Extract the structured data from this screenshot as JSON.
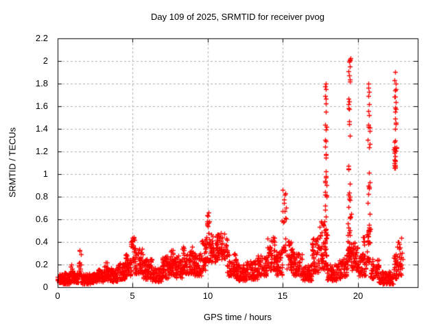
{
  "chart_data": {
    "type": "scatter",
    "title": "Day 109 of 2025, SRMTID for receiver pvog",
    "xlabel": "GPS time / hours",
    "ylabel": "SRMTID / TECUs",
    "xlim": [
      0,
      24
    ],
    "ylim": [
      0,
      2.2
    ],
    "grid": true,
    "legend": false,
    "xticks": [
      {
        "v": 0,
        "label": "0"
      },
      {
        "v": 5,
        "label": "5"
      },
      {
        "v": 10,
        "label": "10"
      },
      {
        "v": 15,
        "label": "15"
      },
      {
        "v": 20,
        "label": "20"
      }
    ],
    "yticks": [
      {
        "v": 0.0,
        "label": "0"
      },
      {
        "v": 0.2,
        "label": "0.2"
      },
      {
        "v": 0.4,
        "label": "0.4"
      },
      {
        "v": 0.6,
        "label": "0.6"
      },
      {
        "v": 0.8,
        "label": "0.8"
      },
      {
        "v": 1.0,
        "label": "1"
      },
      {
        "v": 1.2,
        "label": "1.2"
      },
      {
        "v": 1.4,
        "label": "1.4"
      },
      {
        "v": 1.6,
        "label": "1.6"
      },
      {
        "v": 1.8,
        "label": "1.8"
      },
      {
        "v": 2.0,
        "label": "2"
      },
      {
        "v": 2.2,
        "label": "2.2"
      }
    ],
    "marker": {
      "shape": "plus",
      "color": "#ff0000",
      "size": 7
    },
    "grid_style": {
      "color": "#b0b0b0",
      "dash": [
        3,
        3
      ]
    },
    "axis_color": "#000000",
    "background": "#ffffff",
    "bin_format": "[x0_hours, x1_hours, y_min_TECU, y_max_TECU, n_points, uniform_exponent(optional)]",
    "bins": [
      [
        0.0,
        0.35,
        0.04,
        0.12,
        45
      ],
      [
        0.35,
        0.85,
        0.03,
        0.13,
        65
      ],
      [
        0.85,
        1.05,
        0.05,
        0.2,
        25
      ],
      [
        1.05,
        1.42,
        0.04,
        0.12,
        45
      ],
      [
        1.42,
        1.56,
        0.08,
        0.33,
        16,
        1.0
      ],
      [
        1.56,
        2.15,
        0.03,
        0.12,
        70
      ],
      [
        2.15,
        2.65,
        0.04,
        0.13,
        60
      ],
      [
        2.65,
        3.1,
        0.05,
        0.16,
        55
      ],
      [
        3.1,
        3.4,
        0.06,
        0.22,
        35
      ],
      [
        3.4,
        4.0,
        0.05,
        0.17,
        70
      ],
      [
        4.0,
        4.5,
        0.07,
        0.22,
        55
      ],
      [
        4.5,
        4.88,
        0.1,
        0.3,
        40
      ],
      [
        4.88,
        5.12,
        0.15,
        0.46,
        24,
        1.0
      ],
      [
        5.12,
        5.7,
        0.12,
        0.35,
        60
      ],
      [
        5.7,
        6.3,
        0.07,
        0.25,
        60
      ],
      [
        6.3,
        6.9,
        0.05,
        0.18,
        60
      ],
      [
        6.9,
        7.4,
        0.08,
        0.28,
        55
      ],
      [
        7.4,
        7.7,
        0.1,
        0.33,
        32
      ],
      [
        7.7,
        8.3,
        0.08,
        0.28,
        60
      ],
      [
        8.3,
        9.1,
        0.12,
        0.36,
        80
      ],
      [
        9.1,
        9.6,
        0.1,
        0.3,
        50
      ],
      [
        9.6,
        9.92,
        0.15,
        0.45,
        34
      ],
      [
        9.92,
        10.12,
        0.22,
        0.66,
        20,
        1.0
      ],
      [
        10.12,
        10.6,
        0.22,
        0.47,
        48
      ],
      [
        10.6,
        11.3,
        0.24,
        0.48,
        70
      ],
      [
        11.3,
        11.9,
        0.1,
        0.3,
        58
      ],
      [
        11.9,
        12.6,
        0.06,
        0.2,
        68
      ],
      [
        12.6,
        13.3,
        0.07,
        0.24,
        66
      ],
      [
        13.3,
        13.9,
        0.1,
        0.28,
        58
      ],
      [
        13.9,
        14.55,
        0.15,
        0.45,
        60
      ],
      [
        14.55,
        14.95,
        0.1,
        0.32,
        40
      ],
      [
        14.95,
        15.25,
        0.3,
        0.86,
        22,
        1.0
      ],
      [
        15.25,
        15.7,
        0.15,
        0.42,
        42
      ],
      [
        15.7,
        16.3,
        0.1,
        0.3,
        58
      ],
      [
        16.3,
        16.95,
        0.06,
        0.2,
        62
      ],
      [
        16.95,
        17.45,
        0.12,
        0.45,
        48
      ],
      [
        17.45,
        17.78,
        0.15,
        0.58,
        34
      ],
      [
        17.78,
        17.95,
        0.18,
        0.6,
        28
      ],
      [
        17.8,
        17.92,
        0.6,
        1.05,
        13,
        1.0
      ],
      [
        17.82,
        17.9,
        1.05,
        1.55,
        9,
        1.0
      ],
      [
        17.83,
        17.89,
        1.55,
        1.82,
        7,
        1.0
      ],
      [
        17.95,
        18.7,
        0.06,
        0.2,
        70
      ],
      [
        18.7,
        19.2,
        0.08,
        0.25,
        48
      ],
      [
        19.2,
        19.33,
        0.1,
        0.3,
        14
      ],
      [
        19.33,
        19.55,
        0.25,
        0.7,
        30
      ],
      [
        19.36,
        19.5,
        0.7,
        1.3,
        10,
        1.0
      ],
      [
        19.38,
        19.5,
        1.3,
        1.75,
        8,
        1.0
      ],
      [
        19.4,
        19.5,
        1.75,
        2.03,
        9,
        1.0
      ],
      [
        19.55,
        20.0,
        0.15,
        0.4,
        42
      ],
      [
        20.0,
        20.55,
        0.1,
        0.3,
        48
      ],
      [
        20.3,
        20.52,
        0.3,
        0.47,
        6,
        1.0
      ],
      [
        20.62,
        20.85,
        0.22,
        0.55,
        26
      ],
      [
        20.66,
        20.8,
        0.55,
        1.1,
        9,
        1.0
      ],
      [
        20.68,
        20.8,
        1.1,
        1.6,
        9,
        1.0
      ],
      [
        20.68,
        20.78,
        1.6,
        1.86,
        6,
        1.0
      ],
      [
        20.85,
        21.4,
        0.08,
        0.25,
        52
      ],
      [
        21.4,
        22.35,
        0.03,
        0.14,
        85
      ],
      [
        22.38,
        22.62,
        0.08,
        0.3,
        24
      ],
      [
        22.42,
        22.58,
        1.04,
        1.3,
        20,
        1.0
      ],
      [
        22.44,
        22.56,
        1.3,
        1.6,
        7,
        1.0
      ],
      [
        22.45,
        22.55,
        1.6,
        1.93,
        8,
        1.0
      ],
      [
        22.6,
        23.0,
        0.1,
        0.45,
        32
      ]
    ]
  }
}
